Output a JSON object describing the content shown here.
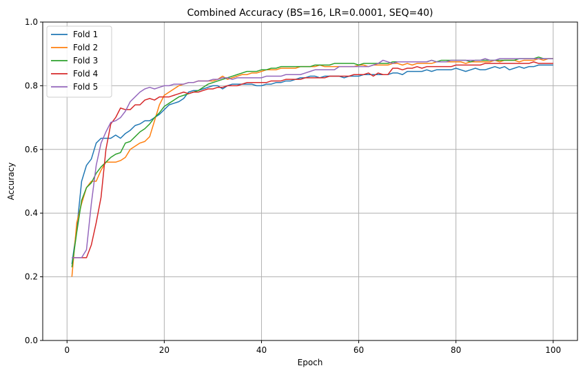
{
  "chart_data": {
    "type": "line",
    "title": "Combined Accuracy (BS=16, LR=0.0001, SEQ=40)",
    "xlabel": "Epoch",
    "ylabel": "Accuracy",
    "xlim": [
      -5,
      105
    ],
    "ylim": [
      0.0,
      1.0
    ],
    "xticks": [
      0,
      20,
      40,
      60,
      80,
      100
    ],
    "yticks": [
      0.0,
      0.2,
      0.4,
      0.6,
      0.8,
      1.0
    ],
    "xtick_labels": [
      "0",
      "20",
      "40",
      "60",
      "80",
      "100"
    ],
    "ytick_labels": [
      "0.0",
      "0.2",
      "0.4",
      "0.6",
      "0.8",
      "1.0"
    ],
    "grid": true,
    "legend_position": "top-left",
    "x": [
      1,
      2,
      3,
      4,
      5,
      6,
      7,
      8,
      9,
      10,
      11,
      12,
      13,
      14,
      15,
      16,
      17,
      18,
      19,
      20,
      21,
      22,
      23,
      24,
      25,
      26,
      27,
      28,
      29,
      30,
      31,
      32,
      33,
      34,
      35,
      36,
      37,
      38,
      39,
      40,
      41,
      42,
      43,
      44,
      45,
      46,
      47,
      48,
      49,
      50,
      51,
      52,
      53,
      54,
      55,
      56,
      57,
      58,
      59,
      60,
      61,
      62,
      63,
      64,
      65,
      66,
      67,
      68,
      69,
      70,
      71,
      72,
      73,
      74,
      75,
      76,
      77,
      78,
      79,
      80,
      81,
      82,
      83,
      84,
      85,
      86,
      87,
      88,
      89,
      90,
      91,
      92,
      93,
      94,
      95,
      96,
      97,
      98,
      99,
      100
    ],
    "series": [
      {
        "name": "Fold 1",
        "color": "#1f77b4",
        "values": [
          0.24,
          0.35,
          0.5,
          0.55,
          0.57,
          0.62,
          0.635,
          0.635,
          0.635,
          0.645,
          0.635,
          0.65,
          0.66,
          0.675,
          0.68,
          0.69,
          0.69,
          0.7,
          0.71,
          0.725,
          0.74,
          0.745,
          0.75,
          0.76,
          0.78,
          0.785,
          0.785,
          0.79,
          0.795,
          0.8,
          0.8,
          0.79,
          0.8,
          0.805,
          0.805,
          0.805,
          0.805,
          0.805,
          0.8,
          0.8,
          0.805,
          0.805,
          0.81,
          0.81,
          0.815,
          0.815,
          0.82,
          0.825,
          0.825,
          0.83,
          0.83,
          0.825,
          0.83,
          0.83,
          0.83,
          0.83,
          0.825,
          0.83,
          0.83,
          0.83,
          0.835,
          0.835,
          0.835,
          0.835,
          0.835,
          0.835,
          0.84,
          0.84,
          0.835,
          0.845,
          0.845,
          0.845,
          0.845,
          0.85,
          0.845,
          0.85,
          0.85,
          0.85,
          0.85,
          0.855,
          0.85,
          0.845,
          0.85,
          0.855,
          0.85,
          0.85,
          0.855,
          0.86,
          0.855,
          0.86,
          0.85,
          0.855,
          0.86,
          0.855,
          0.86,
          0.86,
          0.865,
          0.865,
          0.865,
          0.865
        ]
      },
      {
        "name": "Fold 2",
        "color": "#ff7f0e",
        "values": [
          0.2,
          0.37,
          0.43,
          0.48,
          0.5,
          0.5,
          0.535,
          0.56,
          0.56,
          0.56,
          0.565,
          0.575,
          0.6,
          0.61,
          0.62,
          0.625,
          0.64,
          0.69,
          0.74,
          0.77,
          0.78,
          0.79,
          0.8,
          0.805,
          0.81,
          0.81,
          0.815,
          0.815,
          0.815,
          0.815,
          0.82,
          0.83,
          0.82,
          0.825,
          0.83,
          0.835,
          0.835,
          0.84,
          0.84,
          0.845,
          0.85,
          0.85,
          0.85,
          0.855,
          0.855,
          0.855,
          0.855,
          0.86,
          0.86,
          0.86,
          0.86,
          0.865,
          0.86,
          0.86,
          0.86,
          0.86,
          0.86,
          0.86,
          0.86,
          0.865,
          0.865,
          0.86,
          0.865,
          0.865,
          0.865,
          0.865,
          0.87,
          0.87,
          0.865,
          0.87,
          0.865,
          0.87,
          0.87,
          0.87,
          0.87,
          0.875,
          0.875,
          0.875,
          0.875,
          0.875,
          0.875,
          0.87,
          0.875,
          0.875,
          0.875,
          0.875,
          0.875,
          0.88,
          0.875,
          0.88,
          0.88,
          0.88,
          0.875,
          0.88,
          0.88,
          0.88,
          0.885,
          0.88,
          0.885,
          0.885
        ]
      },
      {
        "name": "Fold 3",
        "color": "#2ca02c",
        "values": [
          0.23,
          0.34,
          0.44,
          0.48,
          0.495,
          0.525,
          0.545,
          0.56,
          0.575,
          0.585,
          0.59,
          0.62,
          0.625,
          0.64,
          0.655,
          0.665,
          0.68,
          0.7,
          0.715,
          0.735,
          0.745,
          0.755,
          0.765,
          0.77,
          0.775,
          0.78,
          0.785,
          0.795,
          0.805,
          0.81,
          0.815,
          0.82,
          0.825,
          0.83,
          0.835,
          0.84,
          0.845,
          0.845,
          0.845,
          0.85,
          0.85,
          0.855,
          0.855,
          0.86,
          0.86,
          0.86,
          0.86,
          0.86,
          0.86,
          0.86,
          0.865,
          0.865,
          0.865,
          0.865,
          0.87,
          0.87,
          0.87,
          0.87,
          0.87,
          0.865,
          0.87,
          0.87,
          0.87,
          0.87,
          0.87,
          0.87,
          0.875,
          0.875,
          0.875,
          0.875,
          0.875,
          0.875,
          0.875,
          0.875,
          0.88,
          0.875,
          0.88,
          0.88,
          0.88,
          0.88,
          0.88,
          0.88,
          0.875,
          0.88,
          0.88,
          0.88,
          0.88,
          0.88,
          0.88,
          0.88,
          0.88,
          0.88,
          0.885,
          0.885,
          0.885,
          0.885,
          0.89,
          0.885,
          0.885,
          0.885
        ]
      },
      {
        "name": "Fold 4",
        "color": "#d62728",
        "values": [
          0.26,
          0.26,
          0.26,
          0.26,
          0.3,
          0.37,
          0.45,
          0.6,
          0.68,
          0.7,
          0.73,
          0.725,
          0.725,
          0.74,
          0.74,
          0.755,
          0.76,
          0.755,
          0.765,
          0.765,
          0.765,
          0.77,
          0.775,
          0.78,
          0.775,
          0.78,
          0.78,
          0.785,
          0.79,
          0.79,
          0.795,
          0.795,
          0.8,
          0.8,
          0.8,
          0.805,
          0.81,
          0.81,
          0.81,
          0.81,
          0.81,
          0.815,
          0.815,
          0.815,
          0.82,
          0.82,
          0.82,
          0.82,
          0.825,
          0.825,
          0.825,
          0.825,
          0.825,
          0.83,
          0.83,
          0.83,
          0.83,
          0.83,
          0.835,
          0.835,
          0.835,
          0.84,
          0.83,
          0.84,
          0.835,
          0.835,
          0.855,
          0.855,
          0.85,
          0.855,
          0.855,
          0.86,
          0.855,
          0.86,
          0.86,
          0.86,
          0.86,
          0.86,
          0.86,
          0.865,
          0.865,
          0.865,
          0.865,
          0.865,
          0.865,
          0.87,
          0.87,
          0.87,
          0.87,
          0.87,
          0.87,
          0.87,
          0.87,
          0.87,
          0.87,
          0.875,
          0.87,
          0.87,
          0.87,
          0.87
        ]
      },
      {
        "name": "Fold 5",
        "color": "#9467bd",
        "values": [
          0.26,
          0.26,
          0.26,
          0.285,
          0.43,
          0.55,
          0.62,
          0.655,
          0.685,
          0.69,
          0.7,
          0.72,
          0.75,
          0.765,
          0.78,
          0.79,
          0.795,
          0.79,
          0.795,
          0.8,
          0.8,
          0.805,
          0.805,
          0.805,
          0.81,
          0.81,
          0.815,
          0.815,
          0.815,
          0.82,
          0.82,
          0.825,
          0.825,
          0.82,
          0.825,
          0.825,
          0.825,
          0.825,
          0.825,
          0.825,
          0.83,
          0.83,
          0.83,
          0.83,
          0.835,
          0.835,
          0.835,
          0.835,
          0.84,
          0.845,
          0.85,
          0.85,
          0.85,
          0.85,
          0.85,
          0.86,
          0.86,
          0.86,
          0.86,
          0.86,
          0.86,
          0.86,
          0.865,
          0.87,
          0.88,
          0.875,
          0.87,
          0.875,
          0.875,
          0.875,
          0.875,
          0.875,
          0.875,
          0.875,
          0.88,
          0.875,
          0.875,
          0.875,
          0.88,
          0.88,
          0.88,
          0.88,
          0.88,
          0.88,
          0.88,
          0.885,
          0.88,
          0.88,
          0.885,
          0.885,
          0.885,
          0.885,
          0.885,
          0.885,
          0.885,
          0.885,
          0.885,
          0.885,
          0.885,
          0.885
        ]
      }
    ]
  }
}
